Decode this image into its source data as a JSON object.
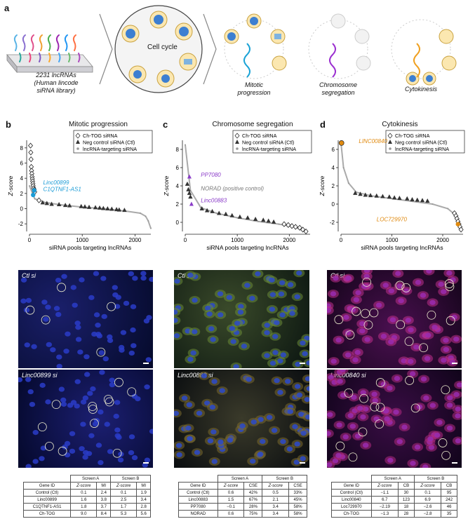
{
  "panel_a": {
    "label": "a",
    "cell_cycle": "Cell cycle",
    "library": [
      "2231 lncRNAs",
      "(Human lincode",
      "siRNA library)"
    ],
    "phases": [
      "Mitotic",
      "progression",
      "Chromosome",
      "segregation",
      "Cytokinesis"
    ]
  },
  "panels": [
    {
      "label": "b",
      "title": "Mitotic progression",
      "legend": [
        "Ch-TOG siRNA",
        "Neg control siRNA (Ctl)",
        "lncRNA-targeting siRNA"
      ],
      "annotations": [
        "Linc00899",
        "C1QTNF1-AS1"
      ],
      "ylabel": "Z-score",
      "xlabel": "siRNA pools targeting lncRNAs",
      "yticks": [
        "8",
        "6",
        "4",
        "2",
        "0",
        "-2"
      ],
      "xticks": [
        "0",
        "1000",
        "2000"
      ],
      "img_top_label": "Ctl si",
      "img_bottom_label": "Linc00899 si",
      "table": {
        "groups": [
          "Screen A",
          "Screen B"
        ],
        "headers": [
          "Gene ID",
          "Z-score",
          "MI",
          "Z-score",
          "MI"
        ],
        "rows": [
          [
            "Control (Ctl)",
            "0.1",
            "2.4",
            "0.1",
            "1.9"
          ],
          [
            "Linc00899",
            "1.6",
            "3.8",
            "2.5",
            "3.4"
          ],
          [
            "C1QTNF1-AS1",
            "1.8",
            "3.7",
            "1.7",
            "2.8"
          ],
          [
            "Ch-TOG",
            "9.0",
            "8.4",
            "5.3",
            "5.6"
          ]
        ]
      }
    },
    {
      "label": "c",
      "title": "Chromosome segregation",
      "legend": [
        "Ch-TOG siRNA",
        "Neg control siRNA (Ctl)",
        "lncRNA-targeting siRNA"
      ],
      "annotations": [
        "PP7080",
        "NORAD (positive control)",
        "Linc00883"
      ],
      "ylabel": "Z-score",
      "xlabel": "siRNA pools targeting lncRNAs",
      "yticks": [
        "8",
        "6",
        "4",
        "2",
        "0"
      ],
      "xticks": [
        "0",
        "1000",
        "2000"
      ],
      "img_top_label": "Ctl si",
      "img_bottom_label": "Linc00883 si",
      "table": {
        "groups": [
          "Screen A",
          "Screen B"
        ],
        "headers": [
          "Gene ID",
          "Z-score",
          "CSE",
          "Z-score",
          "CSE"
        ],
        "rows": [
          [
            "Control (Ctl)",
            "0.6",
            "42%",
            "0.5",
            "33%"
          ],
          [
            "Linc00883",
            "1.5",
            "67%",
            "2.1",
            "45%"
          ],
          [
            "PP7080",
            "−0.1",
            "28%",
            "3.4",
            "58%"
          ],
          [
            "NORAD",
            "0.6",
            "75%",
            "3.4",
            "58%"
          ]
        ]
      }
    },
    {
      "label": "d",
      "title": "Cytokinesis",
      "legend": [
        "Ch-TOG siRNA",
        "Neg control siRNA (Ctl)",
        "lncRNA-targeting siRNA"
      ],
      "annotations": [
        "LINC00840",
        "LOC729970"
      ],
      "ylabel": "Z-score",
      "xlabel": "siRNA pools targeting lncRNAs",
      "yticks": [
        "6",
        "4",
        "2",
        "0",
        "-2"
      ],
      "xticks": [
        "0",
        "1000",
        "2000"
      ],
      "img_top_label": "Ctl si",
      "img_bottom_label": "Linc00840 si",
      "table": {
        "groups": [
          "Screen A",
          "Screen B"
        ],
        "headers": [
          "Gene ID",
          "Z-score",
          "CB",
          "Z-score",
          "CB"
        ],
        "rows": [
          [
            "Control (Ctl)",
            "−1.1",
            "30",
            "0.1",
            "95"
          ],
          [
            "Linc00840",
            "6.7",
            "123",
            "6.9",
            "242"
          ],
          [
            "Loc729970",
            "−2.19",
            "18",
            "−2.6",
            "46"
          ],
          [
            "Ch-TOG",
            "−1.3",
            "28",
            "−2.8",
            "35"
          ]
        ]
      }
    }
  ],
  "chart_data": [
    {
      "type": "scatter",
      "title": "Mitotic progression",
      "xlabel": "siRNA pools targeting lncRNAs",
      "ylabel": "Z-score",
      "xlim": [
        0,
        2300
      ],
      "ylim": [
        -3,
        9
      ],
      "series": [
        {
          "name": "lncRNA-targeting siRNA",
          "x": [
            0,
            100,
            300,
            600,
            1000,
            1400,
            1800,
            2100,
            2200,
            2250,
            2300
          ],
          "y": [
            3.0,
            1.3,
            0.8,
            0.5,
            0.2,
            0.0,
            -0.3,
            -0.6,
            -1.0,
            -1.6,
            -2.6
          ]
        },
        {
          "name": "Ch-TOG siRNA",
          "x": [
            20,
            25,
            30,
            35,
            40,
            45,
            50,
            55,
            60,
            65,
            70,
            80,
            90,
            100,
            180
          ],
          "y": [
            8.3,
            7.4,
            6.5,
            5.5,
            5.0,
            4.6,
            4.2,
            3.9,
            3.6,
            3.3,
            3.0,
            2.7,
            2.5,
            2.2,
            1.1
          ]
        },
        {
          "name": "Neg control siRNA (Ctl)",
          "x": [
            250,
            330,
            420,
            560,
            680,
            760,
            980,
            1050,
            1130,
            1250,
            1330,
            1400,
            1480,
            1560,
            1650,
            1700,
            1800
          ],
          "y": [
            0.8,
            0.7,
            0.6,
            0.55,
            0.45,
            0.4,
            0.3,
            0.25,
            0.2,
            0.15,
            0.1,
            0.05,
            0.0,
            -0.05,
            -0.1,
            -0.15,
            -0.2
          ]
        }
      ]
    },
    {
      "type": "scatter",
      "title": "Chromosome segregation",
      "xlabel": "siRNA pools targeting lncRNAs",
      "ylabel": "Z-score",
      "xlim": [
        0,
        2400
      ],
      "ylim": [
        -1,
        9
      ],
      "series": [
        {
          "name": "lncRNA-targeting siRNA",
          "x": [
            0,
            100,
            300,
            600,
            1000,
            1400,
            1800,
            2100,
            2300
          ],
          "y": [
            8.5,
            3.5,
            1.6,
            1.0,
            0.5,
            0.1,
            -0.2,
            -0.5,
            -1.0
          ]
        },
        {
          "name": "Ch-TOG siRNA",
          "x": [
            1900,
            1980,
            2050,
            2120,
            2200,
            2260,
            2320
          ],
          "y": [
            -0.2,
            -0.3,
            -0.4,
            -0.5,
            -0.6,
            -0.8,
            -1.0
          ]
        },
        {
          "name": "Neg control siRNA (Ctl)",
          "x": [
            40,
            60,
            80,
            100,
            320,
            420,
            520,
            650,
            780,
            900,
            1050,
            1200,
            1350,
            1500,
            1600,
            1700
          ],
          "y": [
            4.2,
            3.6,
            3.2,
            2.8,
            1.5,
            1.3,
            1.2,
            1.0,
            0.9,
            0.75,
            0.6,
            0.5,
            0.35,
            0.25,
            0.15,
            0.05
          ]
        }
      ]
    },
    {
      "type": "scatter",
      "title": "Cytokinesis",
      "xlabel": "siRNA pools targeting lncRNAs",
      "ylabel": "Z-score",
      "xlim": [
        0,
        2400
      ],
      "ylim": [
        -3,
        7
      ],
      "series": [
        {
          "name": "lncRNA-targeting siRNA",
          "x": [
            0,
            50,
            150,
            300,
            600,
            1000,
            1400,
            1800,
            2100,
            2250,
            2350
          ],
          "y": [
            6.7,
            4.0,
            2.3,
            1.3,
            0.9,
            0.6,
            0.3,
            0.0,
            -0.5,
            -1.2,
            -2.8
          ]
        },
        {
          "name": "Ch-TOG siRNA",
          "x": [
            2230,
            2260,
            2280,
            2300,
            2320,
            2340,
            2360
          ],
          "y": [
            -1.0,
            -1.3,
            -1.6,
            -1.9,
            -2.2,
            -2.5,
            -2.8
          ]
        },
        {
          "name": "Neg control siRNA (Ctl)",
          "x": [
            280,
            380,
            480,
            580,
            700,
            820,
            950,
            1050,
            1150,
            1300,
            1400,
            1500,
            1600,
            1700
          ],
          "y": [
            1.2,
            1.1,
            1.0,
            0.95,
            0.9,
            0.85,
            0.8,
            0.7,
            0.65,
            0.6,
            0.5,
            0.45,
            0.4,
            0.35
          ]
        }
      ]
    }
  ]
}
